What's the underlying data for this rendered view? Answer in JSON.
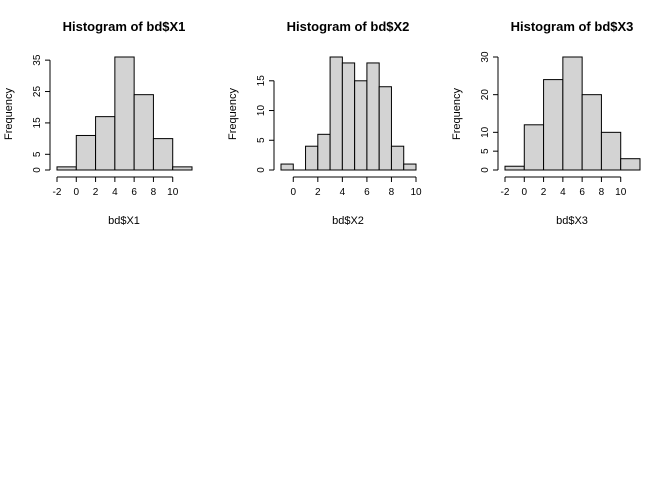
{
  "figure": {
    "background": "#ffffff",
    "bar_fill": "#d3d3d3",
    "stroke": "#000000"
  },
  "chart_data": [
    {
      "type": "bar",
      "title": "Histogram of bd$X1",
      "xlabel": "bd$X1",
      "ylabel": "Frequency",
      "bins": [
        [
          -2,
          0
        ],
        [
          0,
          2
        ],
        [
          2,
          4
        ],
        [
          4,
          6
        ],
        [
          6,
          8
        ],
        [
          8,
          10
        ],
        [
          10,
          12
        ]
      ],
      "values": [
        1,
        11,
        17,
        36,
        24,
        10,
        1
      ],
      "xlim": [
        -2,
        12
      ],
      "ylim": [
        0,
        36
      ],
      "xticks": [
        -2,
        0,
        2,
        4,
        6,
        8,
        10
      ],
      "yticks": [
        0,
        5,
        15,
        25,
        35
      ],
      "grid": false,
      "legend": "none"
    },
    {
      "type": "bar",
      "title": "Histogram of bd$X2",
      "xlabel": "bd$X2",
      "ylabel": "Frequency",
      "bins": [
        [
          -1,
          0
        ],
        [
          0,
          1
        ],
        [
          1,
          2
        ],
        [
          2,
          3
        ],
        [
          3,
          4
        ],
        [
          4,
          5
        ],
        [
          5,
          6
        ],
        [
          6,
          7
        ],
        [
          7,
          8
        ],
        [
          8,
          9
        ],
        [
          9,
          10
        ]
      ],
      "values": [
        1,
        0,
        4,
        6,
        19,
        18,
        15,
        18,
        14,
        4,
        1
      ],
      "xlim": [
        -1,
        10
      ],
      "ylim": [
        0,
        19
      ],
      "xticks": [
        0,
        2,
        4,
        6,
        8,
        10
      ],
      "yticks": [
        0,
        5,
        10,
        15
      ],
      "grid": false,
      "legend": "none"
    },
    {
      "type": "bar",
      "title": "Histogram of bd$X3",
      "xlabel": "bd$X3",
      "ylabel": "Frequency",
      "bins": [
        [
          -2,
          0
        ],
        [
          0,
          2
        ],
        [
          2,
          4
        ],
        [
          4,
          6
        ],
        [
          6,
          8
        ],
        [
          8,
          10
        ],
        [
          10,
          12
        ]
      ],
      "values": [
        1,
        12,
        24,
        30,
        20,
        10,
        3
      ],
      "xlim": [
        -2,
        12
      ],
      "ylim": [
        0,
        30
      ],
      "xticks": [
        -2,
        0,
        2,
        4,
        6,
        8,
        10
      ],
      "yticks": [
        0,
        5,
        10,
        20,
        30
      ],
      "grid": false,
      "legend": "none"
    }
  ]
}
